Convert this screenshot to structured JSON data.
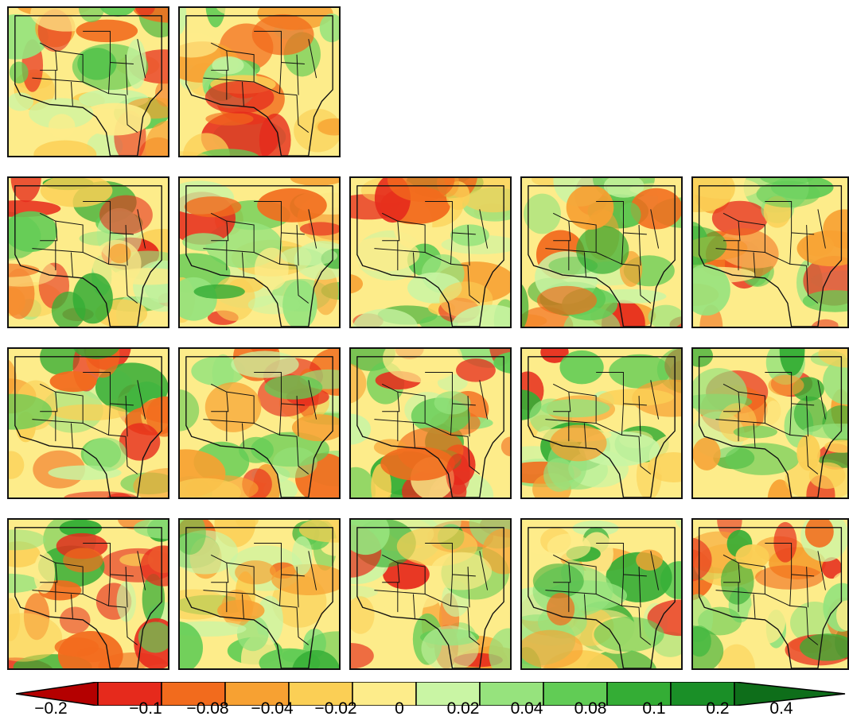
{
  "map_grid": {
    "rows": [
      {
        "panel_count": 2
      },
      {
        "panel_count": 5
      },
      {
        "panel_count": 5
      },
      {
        "panel_count": 5
      }
    ]
  },
  "colorbar": {
    "extend": "both",
    "colors": [
      "#b40000",
      "#e62a1c",
      "#f26b1d",
      "#f7a132",
      "#fbcf55",
      "#fdec8a",
      "#c9f5a4",
      "#96e37d",
      "#61cc55",
      "#34ad35",
      "#1a8f27",
      "#0e6e1a"
    ],
    "tick_labels": [
      "−0.2",
      "−0.1",
      "−0.08",
      "−0.04",
      "−0.02",
      "0",
      "0.02",
      "0.04",
      "0.08",
      "0.1",
      "0.2",
      "0.4"
    ]
  }
}
